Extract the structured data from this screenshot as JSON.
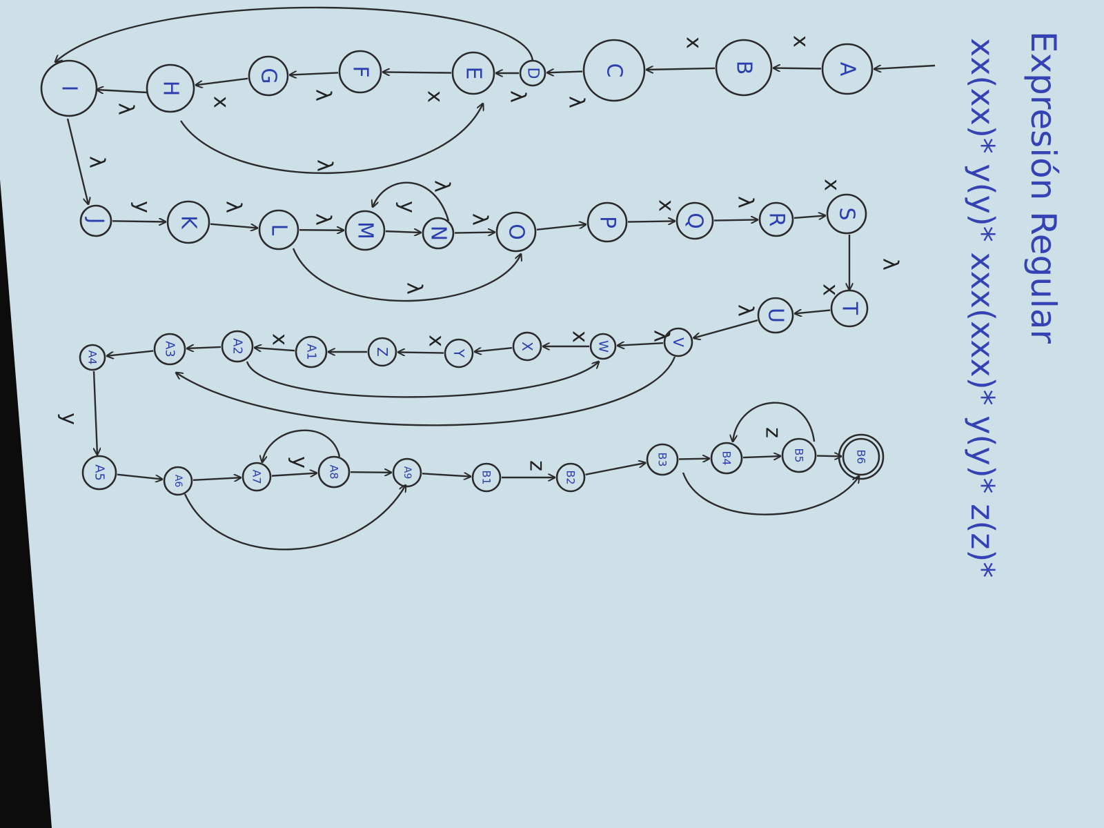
{
  "title": "Expresión Regular",
  "expression": "xx(xx)* y(y)* xxx(xxx)* y(y)* z(z)*",
  "colors": {
    "paper": "#cddfe7",
    "ink": "#2b2b2b",
    "node_text": "#2c3fae",
    "title_ink": "#3542b3"
  },
  "nodes": [
    {
      "id": "A",
      "label": "A"
    },
    {
      "id": "B",
      "label": "B"
    },
    {
      "id": "C",
      "label": "C"
    },
    {
      "id": "D",
      "label": "D"
    },
    {
      "id": "E",
      "label": "E"
    },
    {
      "id": "F",
      "label": "F"
    },
    {
      "id": "G",
      "label": "G"
    },
    {
      "id": "H",
      "label": "H"
    },
    {
      "id": "I",
      "label": "I"
    },
    {
      "id": "J",
      "label": "J"
    },
    {
      "id": "K",
      "label": "K"
    },
    {
      "id": "L",
      "label": "L"
    },
    {
      "id": "M",
      "label": "M"
    },
    {
      "id": "N",
      "label": "N"
    },
    {
      "id": "O",
      "label": "O"
    },
    {
      "id": "P",
      "label": "P"
    },
    {
      "id": "Q",
      "label": "Q"
    },
    {
      "id": "R",
      "label": "R"
    },
    {
      "id": "S",
      "label": "S"
    },
    {
      "id": "T",
      "label": "T"
    },
    {
      "id": "U",
      "label": "U"
    },
    {
      "id": "V",
      "label": "V"
    },
    {
      "id": "W",
      "label": "W"
    },
    {
      "id": "X",
      "label": "X"
    },
    {
      "id": "Y",
      "label": "Y"
    },
    {
      "id": "Z",
      "label": "Z"
    },
    {
      "id": "A1",
      "label": "A1"
    },
    {
      "id": "A2",
      "label": "A2"
    },
    {
      "id": "A3",
      "label": "A3"
    },
    {
      "id": "A4",
      "label": "A4"
    },
    {
      "id": "A5",
      "label": "A5"
    },
    {
      "id": "A6",
      "label": "A6"
    },
    {
      "id": "A7",
      "label": "A7"
    },
    {
      "id": "A8",
      "label": "A8"
    },
    {
      "id": "A9",
      "label": "A9"
    },
    {
      "id": "B1",
      "label": "B1"
    },
    {
      "id": "B2",
      "label": "B2"
    },
    {
      "id": "B3",
      "label": "B3"
    },
    {
      "id": "B4",
      "label": "B4"
    },
    {
      "id": "B5",
      "label": "B5"
    },
    {
      "id": "B6",
      "label": "B6",
      "final": true
    }
  ],
  "edges": [
    {
      "from": "start",
      "to": "A",
      "label": ""
    },
    {
      "from": "A",
      "to": "B",
      "label": "x"
    },
    {
      "from": "B",
      "to": "C",
      "label": "x"
    },
    {
      "from": "C",
      "to": "D",
      "label": "λ"
    },
    {
      "from": "D",
      "to": "E",
      "label": "λ"
    },
    {
      "from": "E",
      "to": "F",
      "label": "x"
    },
    {
      "from": "F",
      "to": "G",
      "label": "λ"
    },
    {
      "from": "G",
      "to": "H",
      "label": "x"
    },
    {
      "from": "H",
      "to": "E",
      "label": "λ"
    },
    {
      "from": "H",
      "to": "I",
      "label": "λ"
    },
    {
      "from": "D",
      "to": "I",
      "label": ""
    },
    {
      "from": "I",
      "to": "J",
      "label": "λ"
    },
    {
      "from": "J",
      "to": "K",
      "label": "y"
    },
    {
      "from": "K",
      "to": "L",
      "label": "λ"
    },
    {
      "from": "L",
      "to": "M",
      "label": "λ"
    },
    {
      "from": "M",
      "to": "N",
      "label": "y"
    },
    {
      "from": "N",
      "to": "M",
      "label": "λ"
    },
    {
      "from": "N",
      "to": "O",
      "label": "λ"
    },
    {
      "from": "L",
      "to": "O",
      "label": "λ"
    },
    {
      "from": "O",
      "to": "P",
      "label": ""
    },
    {
      "from": "P",
      "to": "Q",
      "label": "x"
    },
    {
      "from": "Q",
      "to": "R",
      "label": "λ"
    },
    {
      "from": "R",
      "to": "S",
      "label": "x"
    },
    {
      "from": "S",
      "to": "T",
      "label": "λ"
    },
    {
      "from": "T",
      "to": "U",
      "label": "x"
    },
    {
      "from": "U",
      "to": "V",
      "label": "λ"
    },
    {
      "from": "V",
      "to": "W",
      "label": "λ"
    },
    {
      "from": "W",
      "to": "X",
      "label": "x"
    },
    {
      "from": "X",
      "to": "Y",
      "label": ""
    },
    {
      "from": "Y",
      "to": "Z",
      "label": "x"
    },
    {
      "from": "Z",
      "to": "A1",
      "label": ""
    },
    {
      "from": "A1",
      "to": "A2",
      "label": "x"
    },
    {
      "from": "A2",
      "to": "W",
      "label": ""
    },
    {
      "from": "A2",
      "to": "A3",
      "label": ""
    },
    {
      "from": "V",
      "to": "A3",
      "label": ""
    },
    {
      "from": "A3",
      "to": "A4",
      "label": ""
    },
    {
      "from": "A4",
      "to": "A5",
      "label": "y"
    },
    {
      "from": "A5",
      "to": "A6",
      "label": ""
    },
    {
      "from": "A6",
      "to": "A7",
      "label": ""
    },
    {
      "from": "A7",
      "to": "A8",
      "label": "y"
    },
    {
      "from": "A8",
      "to": "A7",
      "label": ""
    },
    {
      "from": "A8",
      "to": "A9",
      "label": ""
    },
    {
      "from": "A6",
      "to": "A9",
      "label": ""
    },
    {
      "from": "A9",
      "to": "B1",
      "label": ""
    },
    {
      "from": "B1",
      "to": "B2",
      "label": "z"
    },
    {
      "from": "B2",
      "to": "B3",
      "label": ""
    },
    {
      "from": "B3",
      "to": "B4",
      "label": ""
    },
    {
      "from": "B4",
      "to": "B5",
      "label": ""
    },
    {
      "from": "B5",
      "to": "B4",
      "label": "z"
    },
    {
      "from": "B5",
      "to": "B6",
      "label": ""
    },
    {
      "from": "B3",
      "to": "B6",
      "label": ""
    }
  ]
}
